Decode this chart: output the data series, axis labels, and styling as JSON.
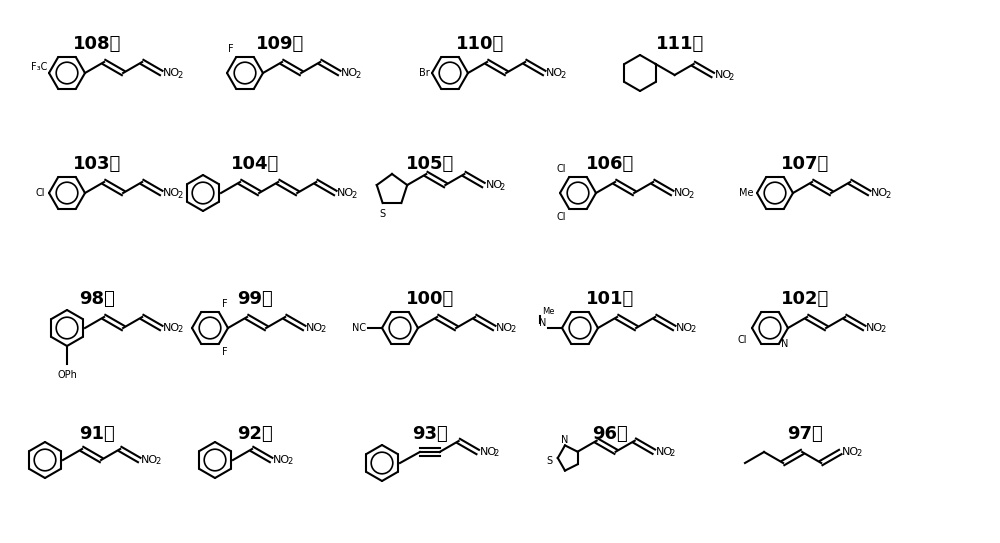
{
  "figsize": [
    10.0,
    5.43
  ],
  "dpi": 100,
  "background": "#ffffff",
  "label_fontsize": 13,
  "lw": 1.5,
  "compounds": [
    {
      "label": "91号",
      "row": 0,
      "col": 0
    },
    {
      "label": "92号",
      "row": 0,
      "col": 1
    },
    {
      "label": "93号",
      "row": 0,
      "col": 2
    },
    {
      "label": "96号",
      "row": 0,
      "col": 3
    },
    {
      "label": "97号",
      "row": 0,
      "col": 4
    },
    {
      "label": "98号",
      "row": 1,
      "col": 0
    },
    {
      "label": "99号",
      "row": 1,
      "col": 1
    },
    {
      "label": "100号",
      "row": 1,
      "col": 2
    },
    {
      "label": "101号",
      "row": 1,
      "col": 3
    },
    {
      "label": "102号",
      "row": 1,
      "col": 4
    },
    {
      "label": "103号",
      "row": 2,
      "col": 0
    },
    {
      "label": "104号",
      "row": 2,
      "col": 1
    },
    {
      "label": "105号",
      "row": 2,
      "col": 2
    },
    {
      "label": "106号",
      "row": 2,
      "col": 3
    },
    {
      "label": "107号",
      "row": 2,
      "col": 4
    },
    {
      "label": "108号",
      "row": 3,
      "col": 0
    },
    {
      "label": "109号",
      "row": 3,
      "col": 1
    },
    {
      "label": "110号",
      "row": 3,
      "col": 2
    },
    {
      "label": "111号",
      "row": 3,
      "col": 3
    }
  ]
}
